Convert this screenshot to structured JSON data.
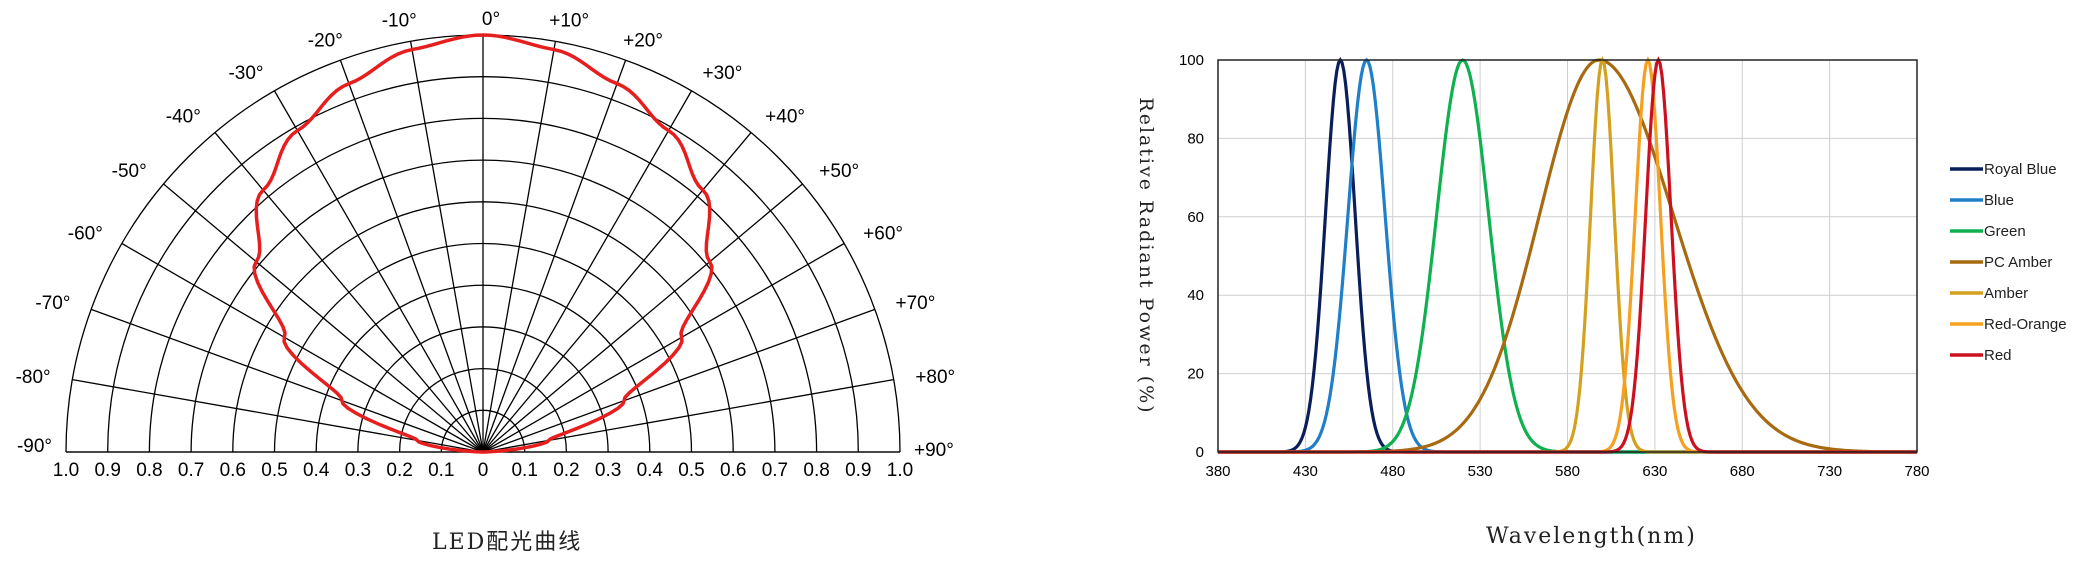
{
  "chart_data": [
    {
      "type": "polar",
      "title": "",
      "caption": "LED配光曲线",
      "angle_labels": [
        "-90°",
        "-80°",
        "-70°",
        "-60°",
        "-50°",
        "-40°",
        "-30°",
        "-20°",
        "-10°",
        "0°",
        "+10°",
        "+20°",
        "+30°",
        "+40°",
        "+50°",
        "+60°",
        "+70°",
        "+80°",
        "+90°"
      ],
      "radial_labels": [
        "1.0",
        "0.9",
        "0.8",
        "0.7",
        "0.6",
        "0.5",
        "0.4",
        "0.3",
        "0.2",
        "0.1",
        "0",
        "0.1",
        "0.2",
        "0.3",
        "0.4",
        "0.5",
        "0.6",
        "0.7",
        "0.8",
        "0.9",
        "1.0"
      ],
      "radial_range": [
        0,
        1
      ],
      "curve_color": "#e61e1e",
      "series": [
        {
          "name": "",
          "angles": [
            -90,
            -80,
            -70,
            -60,
            -50,
            -40,
            -30,
            -20,
            -10,
            0,
            10,
            20,
            30,
            40,
            50,
            60,
            70,
            80,
            90
          ],
          "values": [
            0.0,
            0.16,
            0.36,
            0.55,
            0.71,
            0.82,
            0.89,
            0.94,
            0.98,
            1.0,
            0.98,
            0.94,
            0.89,
            0.82,
            0.71,
            0.55,
            0.36,
            0.16,
            0.0
          ]
        }
      ]
    },
    {
      "type": "line",
      "title": "",
      "xlabel": "Wavelength(nm)",
      "ylabel": "Relative Radiant Power (%)",
      "xlim": [
        380,
        780
      ],
      "ylim": [
        0,
        100
      ],
      "x_ticks": [
        "380",
        "430",
        "480",
        "530",
        "580",
        "630",
        "680",
        "730",
        "780"
      ],
      "y_ticks": [
        "0",
        "20",
        "40",
        "60",
        "80",
        "100"
      ],
      "grid": true,
      "legend_position": "right",
      "series": [
        {
          "name": "Royal Blue",
          "color": "#0a1e5a",
          "peak": 450,
          "fwhm": 20
        },
        {
          "name": "Blue",
          "color": "#1f7fc8",
          "peak": 465,
          "fwhm": 25
        },
        {
          "name": "Green",
          "color": "#10b050",
          "peak": 520,
          "fwhm": 35
        },
        {
          "name": "PC Amber",
          "color": "#a86a10",
          "peak": 598,
          "fwhm": 80
        },
        {
          "name": "Amber",
          "color": "#d4a020",
          "peak": 600,
          "fwhm": 16
        },
        {
          "name": "Red-Orange",
          "color": "#f5a020",
          "peak": 626,
          "fwhm": 17
        },
        {
          "name": "Red",
          "color": "#cc1020",
          "peak": 632,
          "fwhm": 17
        }
      ]
    }
  ]
}
